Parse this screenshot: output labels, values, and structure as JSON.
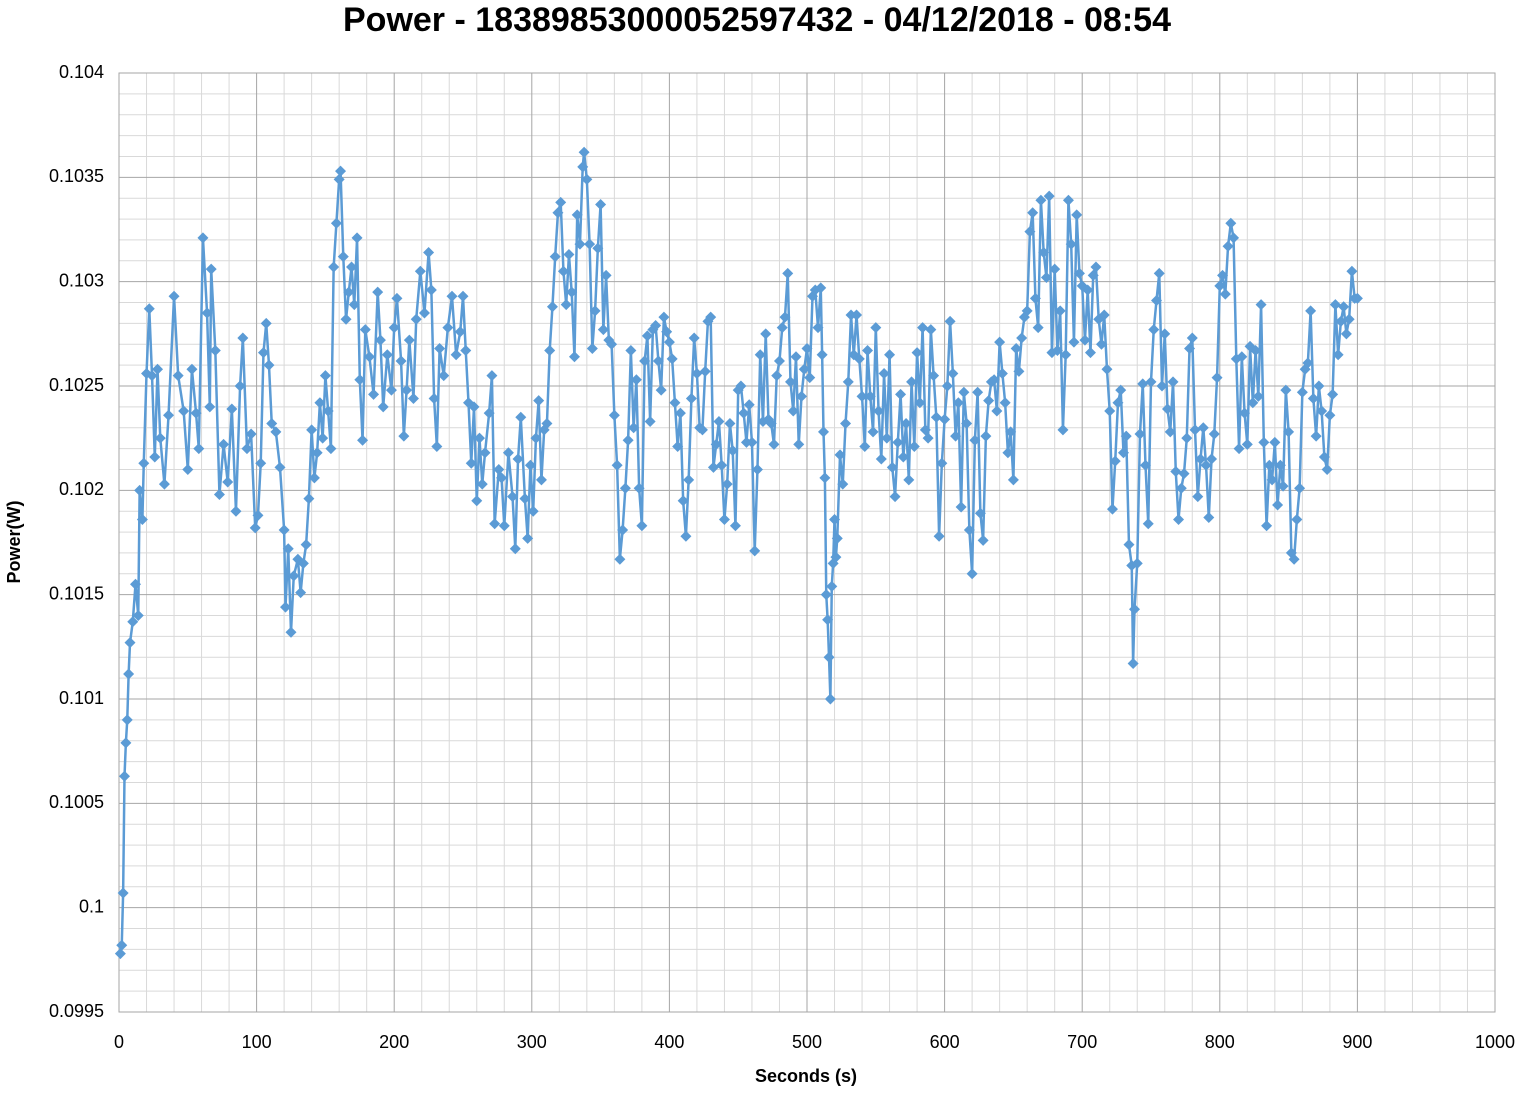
{
  "chart_data": {
    "type": "line",
    "title": "Power - 18389853000052597432 - 04/12/2018 - 08:54",
    "x_label": "Seconds (s)",
    "y_label": "Power(W)",
    "xlim": [
      0,
      1000
    ],
    "xticks": [
      0,
      100,
      200,
      300,
      400,
      500,
      600,
      700,
      800,
      900,
      1000
    ],
    "ylim": [
      0.0995,
      0.104
    ],
    "yticks": [
      0.0995,
      0.1,
      0.1005,
      0.101,
      0.1015,
      0.102,
      0.1025,
      0.103,
      0.1035,
      0.104
    ],
    "grid": true,
    "marker": "diamond",
    "x": [
      1,
      2,
      3,
      4,
      5,
      6,
      7,
      8,
      10,
      12,
      14,
      15,
      17,
      18,
      20,
      22,
      24,
      26,
      28,
      30,
      33,
      36,
      40,
      43,
      47,
      50,
      53,
      56,
      58,
      61,
      64,
      66,
      67,
      70,
      73,
      76,
      79,
      82,
      85,
      88,
      90,
      93,
      96,
      99,
      101,
      103,
      105,
      107,
      109,
      111,
      114,
      117,
      120,
      121,
      123,
      125,
      127,
      130,
      132,
      134,
      136,
      138,
      140,
      142,
      144,
      146,
      148,
      150,
      152,
      154,
      156,
      158,
      160,
      161,
      163,
      165,
      167,
      169,
      171,
      173,
      175,
      177,
      179,
      182,
      185,
      188,
      190,
      192,
      195,
      198,
      200,
      202,
      205,
      207,
      209,
      211,
      214,
      216,
      219,
      222,
      225,
      227,
      229,
      231,
      233,
      236,
      239,
      242,
      245,
      248,
      250,
      252,
      254,
      256,
      258,
      260,
      262,
      264,
      266,
      269,
      271,
      273,
      276,
      278,
      280,
      283,
      286,
      288,
      290,
      292,
      295,
      297,
      299,
      301,
      303,
      305,
      307,
      309,
      311,
      313,
      315,
      317,
      319,
      321,
      323,
      325,
      327,
      329,
      331,
      333,
      335,
      337,
      338,
      340,
      342,
      344,
      346,
      348,
      350,
      352,
      354,
      356,
      358,
      360,
      362,
      364,
      366,
      368,
      370,
      372,
      374,
      376,
      378,
      380,
      382,
      384,
      386,
      388,
      390,
      392,
      394,
      396,
      398,
      400,
      402,
      404,
      406,
      408,
      410,
      412,
      414,
      416,
      418,
      420,
      422,
      424,
      426,
      428,
      430,
      432,
      434,
      436,
      438,
      440,
      442,
      444,
      446,
      448,
      450,
      452,
      454,
      456,
      458,
      460,
      462,
      464,
      466,
      468,
      470,
      472,
      474,
      476,
      478,
      480,
      482,
      484,
      486,
      488,
      490,
      492,
      494,
      496,
      498,
      500,
      502,
      504,
      506,
      508,
      510,
      511,
      512,
      513,
      514,
      515,
      516,
      517,
      518,
      519,
      520,
      521,
      522,
      524,
      526,
      528,
      530,
      532,
      534,
      536,
      538,
      540,
      542,
      544,
      546,
      548,
      550,
      552,
      554,
      556,
      558,
      560,
      562,
      564,
      566,
      568,
      570,
      572,
      574,
      576,
      578,
      580,
      582,
      584,
      586,
      588,
      590,
      592,
      594,
      596,
      598,
      600,
      602,
      604,
      606,
      608,
      610,
      612,
      614,
      616,
      618,
      620,
      622,
      624,
      626,
      628,
      630,
      632,
      634,
      636,
      638,
      640,
      642,
      644,
      646,
      648,
      650,
      652,
      654,
      656,
      658,
      660,
      662,
      664,
      666,
      668,
      670,
      672,
      674,
      676,
      678,
      680,
      682,
      684,
      686,
      688,
      690,
      692,
      694,
      696,
      698,
      700,
      702,
      704,
      706,
      708,
      710,
      712,
      714,
      716,
      718,
      720,
      722,
      724,
      726,
      728,
      730,
      732,
      734,
      736,
      737,
      738,
      740,
      742,
      744,
      746,
      748,
      750,
      752,
      754,
      756,
      758,
      760,
      762,
      764,
      766,
      768,
      770,
      772,
      774,
      776,
      778,
      780,
      782,
      784,
      786,
      788,
      790,
      792,
      794,
      796,
      798,
      800,
      802,
      804,
      806,
      808,
      810,
      812,
      814,
      816,
      818,
      820,
      822,
      824,
      826,
      828,
      830,
      832,
      834,
      836,
      838,
      840,
      842,
      844,
      846,
      848,
      850,
      852,
      854,
      856,
      858,
      860,
      862,
      864,
      866,
      868,
      870,
      872,
      874,
      876,
      878,
      880,
      882,
      884,
      886,
      888,
      890,
      892,
      894,
      896,
      898,
      900
    ],
    "series": [
      {
        "color": "#5b9bd5",
        "values": [
          0.09978,
          0.09982,
          0.10007,
          0.10063,
          0.10079,
          0.1009,
          0.10112,
          0.10127,
          0.10137,
          0.10155,
          0.1014,
          0.102,
          0.10186,
          0.10213,
          0.10256,
          0.10287,
          0.10255,
          0.10216,
          0.10258,
          0.10225,
          0.10203,
          0.10236,
          0.10293,
          0.10255,
          0.10238,
          0.1021,
          0.10258,
          0.10237,
          0.1022,
          0.10321,
          0.10285,
          0.1024,
          0.10306,
          0.10267,
          0.10198,
          0.10222,
          0.10204,
          0.10239,
          0.1019,
          0.1025,
          0.10273,
          0.1022,
          0.10227,
          0.10182,
          0.10188,
          0.10213,
          0.10266,
          0.1028,
          0.1026,
          0.10232,
          0.10228,
          0.10211,
          0.10181,
          0.10144,
          0.10172,
          0.10132,
          0.10159,
          0.10167,
          0.10151,
          0.10165,
          0.10174,
          0.10196,
          0.10229,
          0.10206,
          0.10218,
          0.10242,
          0.10225,
          0.10255,
          0.10238,
          0.1022,
          0.10307,
          0.10328,
          0.10349,
          0.10353,
          0.10312,
          0.10282,
          0.10295,
          0.10307,
          0.10289,
          0.10321,
          0.10253,
          0.10224,
          0.10277,
          0.10264,
          0.10246,
          0.10295,
          0.10272,
          0.1024,
          0.10265,
          0.10248,
          0.10278,
          0.10292,
          0.10262,
          0.10226,
          0.10248,
          0.10272,
          0.10244,
          0.10282,
          0.10305,
          0.10285,
          0.10314,
          0.10296,
          0.10244,
          0.10221,
          0.10268,
          0.10255,
          0.10278,
          0.10293,
          0.10265,
          0.10276,
          0.10293,
          0.10267,
          0.10242,
          0.10213,
          0.1024,
          0.10195,
          0.10225,
          0.10203,
          0.10218,
          0.10237,
          0.10255,
          0.10184,
          0.1021,
          0.10206,
          0.10183,
          0.10218,
          0.10197,
          0.10172,
          0.10215,
          0.10235,
          0.10196,
          0.10177,
          0.10212,
          0.1019,
          0.10225,
          0.10243,
          0.10205,
          0.10229,
          0.10232,
          0.10267,
          0.10288,
          0.10312,
          0.10333,
          0.10338,
          0.10305,
          0.10289,
          0.10313,
          0.10295,
          0.10264,
          0.10332,
          0.10318,
          0.10355,
          0.10362,
          0.10349,
          0.10318,
          0.10268,
          0.10286,
          0.10316,
          0.10337,
          0.10277,
          0.10303,
          0.10272,
          0.1027,
          0.10236,
          0.10212,
          0.10167,
          0.10181,
          0.10201,
          0.10224,
          0.10267,
          0.1023,
          0.10253,
          0.10201,
          0.10183,
          0.10262,
          0.10274,
          0.10233,
          0.10277,
          0.10279,
          0.10262,
          0.10248,
          0.10283,
          0.10276,
          0.10271,
          0.10263,
          0.10242,
          0.10221,
          0.10237,
          0.10195,
          0.10178,
          0.10205,
          0.10244,
          0.10273,
          0.10256,
          0.1023,
          0.10229,
          0.10257,
          0.10281,
          0.10283,
          0.10211,
          0.10222,
          0.10233,
          0.10212,
          0.10186,
          0.10203,
          0.10232,
          0.10219,
          0.10183,
          0.10248,
          0.1025,
          0.10237,
          0.10223,
          0.10241,
          0.10223,
          0.10171,
          0.1021,
          0.10265,
          0.10233,
          0.10275,
          0.10234,
          0.10232,
          0.10222,
          0.10255,
          0.10262,
          0.10278,
          0.10283,
          0.10304,
          0.10252,
          0.10238,
          0.10264,
          0.10222,
          0.10245,
          0.10258,
          0.10268,
          0.10254,
          0.10293,
          0.10296,
          0.10278,
          0.10297,
          0.10265,
          0.10228,
          0.10206,
          0.1015,
          0.10138,
          0.1012,
          0.101,
          0.10154,
          0.10165,
          0.10186,
          0.10168,
          0.10177,
          0.10217,
          0.10203,
          0.10232,
          0.10252,
          0.10284,
          0.10265,
          0.10284,
          0.10263,
          0.10245,
          0.10221,
          0.10267,
          0.10245,
          0.10228,
          0.10278,
          0.10238,
          0.10215,
          0.10256,
          0.10225,
          0.10265,
          0.10211,
          0.10197,
          0.10223,
          0.10246,
          0.10216,
          0.10232,
          0.10205,
          0.10252,
          0.10221,
          0.10266,
          0.10242,
          0.10278,
          0.10229,
          0.10225,
          0.10277,
          0.10255,
          0.10235,
          0.10178,
          0.10213,
          0.10234,
          0.1025,
          0.10281,
          0.10256,
          0.10226,
          0.10242,
          0.10192,
          0.10247,
          0.10232,
          0.10181,
          0.1016,
          0.10224,
          0.10247,
          0.10189,
          0.10176,
          0.10226,
          0.10243,
          0.10252,
          0.10253,
          0.10238,
          0.10271,
          0.10256,
          0.10242,
          0.10218,
          0.10228,
          0.10205,
          0.10268,
          0.10257,
          0.10273,
          0.10283,
          0.10286,
          0.10324,
          0.10333,
          0.10292,
          0.10278,
          0.10339,
          0.10314,
          0.10302,
          0.10341,
          0.10266,
          0.10306,
          0.10267,
          0.10286,
          0.10229,
          0.10265,
          0.10339,
          0.10318,
          0.10271,
          0.10332,
          0.10304,
          0.10298,
          0.10272,
          0.10296,
          0.10266,
          0.10303,
          0.10307,
          0.10282,
          0.1027,
          0.10284,
          0.10258,
          0.10238,
          0.10191,
          0.10214,
          0.10242,
          0.10248,
          0.10218,
          0.10226,
          0.10174,
          0.10164,
          0.10117,
          0.10143,
          0.10165,
          0.10227,
          0.10251,
          0.10212,
          0.10184,
          0.10252,
          0.10277,
          0.10291,
          0.10304,
          0.1025,
          0.10275,
          0.10239,
          0.10228,
          0.10252,
          0.10209,
          0.10186,
          0.10201,
          0.10208,
          0.10225,
          0.10268,
          0.10273,
          0.10229,
          0.10197,
          0.10215,
          0.1023,
          0.10212,
          0.10187,
          0.10215,
          0.10227,
          0.10254,
          0.10298,
          0.10303,
          0.10294,
          0.10317,
          0.10328,
          0.10321,
          0.10263,
          0.1022,
          0.10264,
          0.10237,
          0.10222,
          0.10269,
          0.10242,
          0.10267,
          0.10245,
          0.10289,
          0.10223,
          0.10183,
          0.10212,
          0.10205,
          0.10223,
          0.10193,
          0.10212,
          0.10202,
          0.10248,
          0.10228,
          0.1017,
          0.10167,
          0.10186,
          0.10201,
          0.10247,
          0.10258,
          0.10261,
          0.10286,
          0.10244,
          0.10226,
          0.1025,
          0.10238,
          0.10216,
          0.1021,
          0.10236,
          0.10246,
          0.10289,
          0.10265,
          0.10281,
          0.10288,
          0.10275,
          0.10282,
          0.10305,
          0.10292,
          0.10292
        ]
      }
    ]
  }
}
